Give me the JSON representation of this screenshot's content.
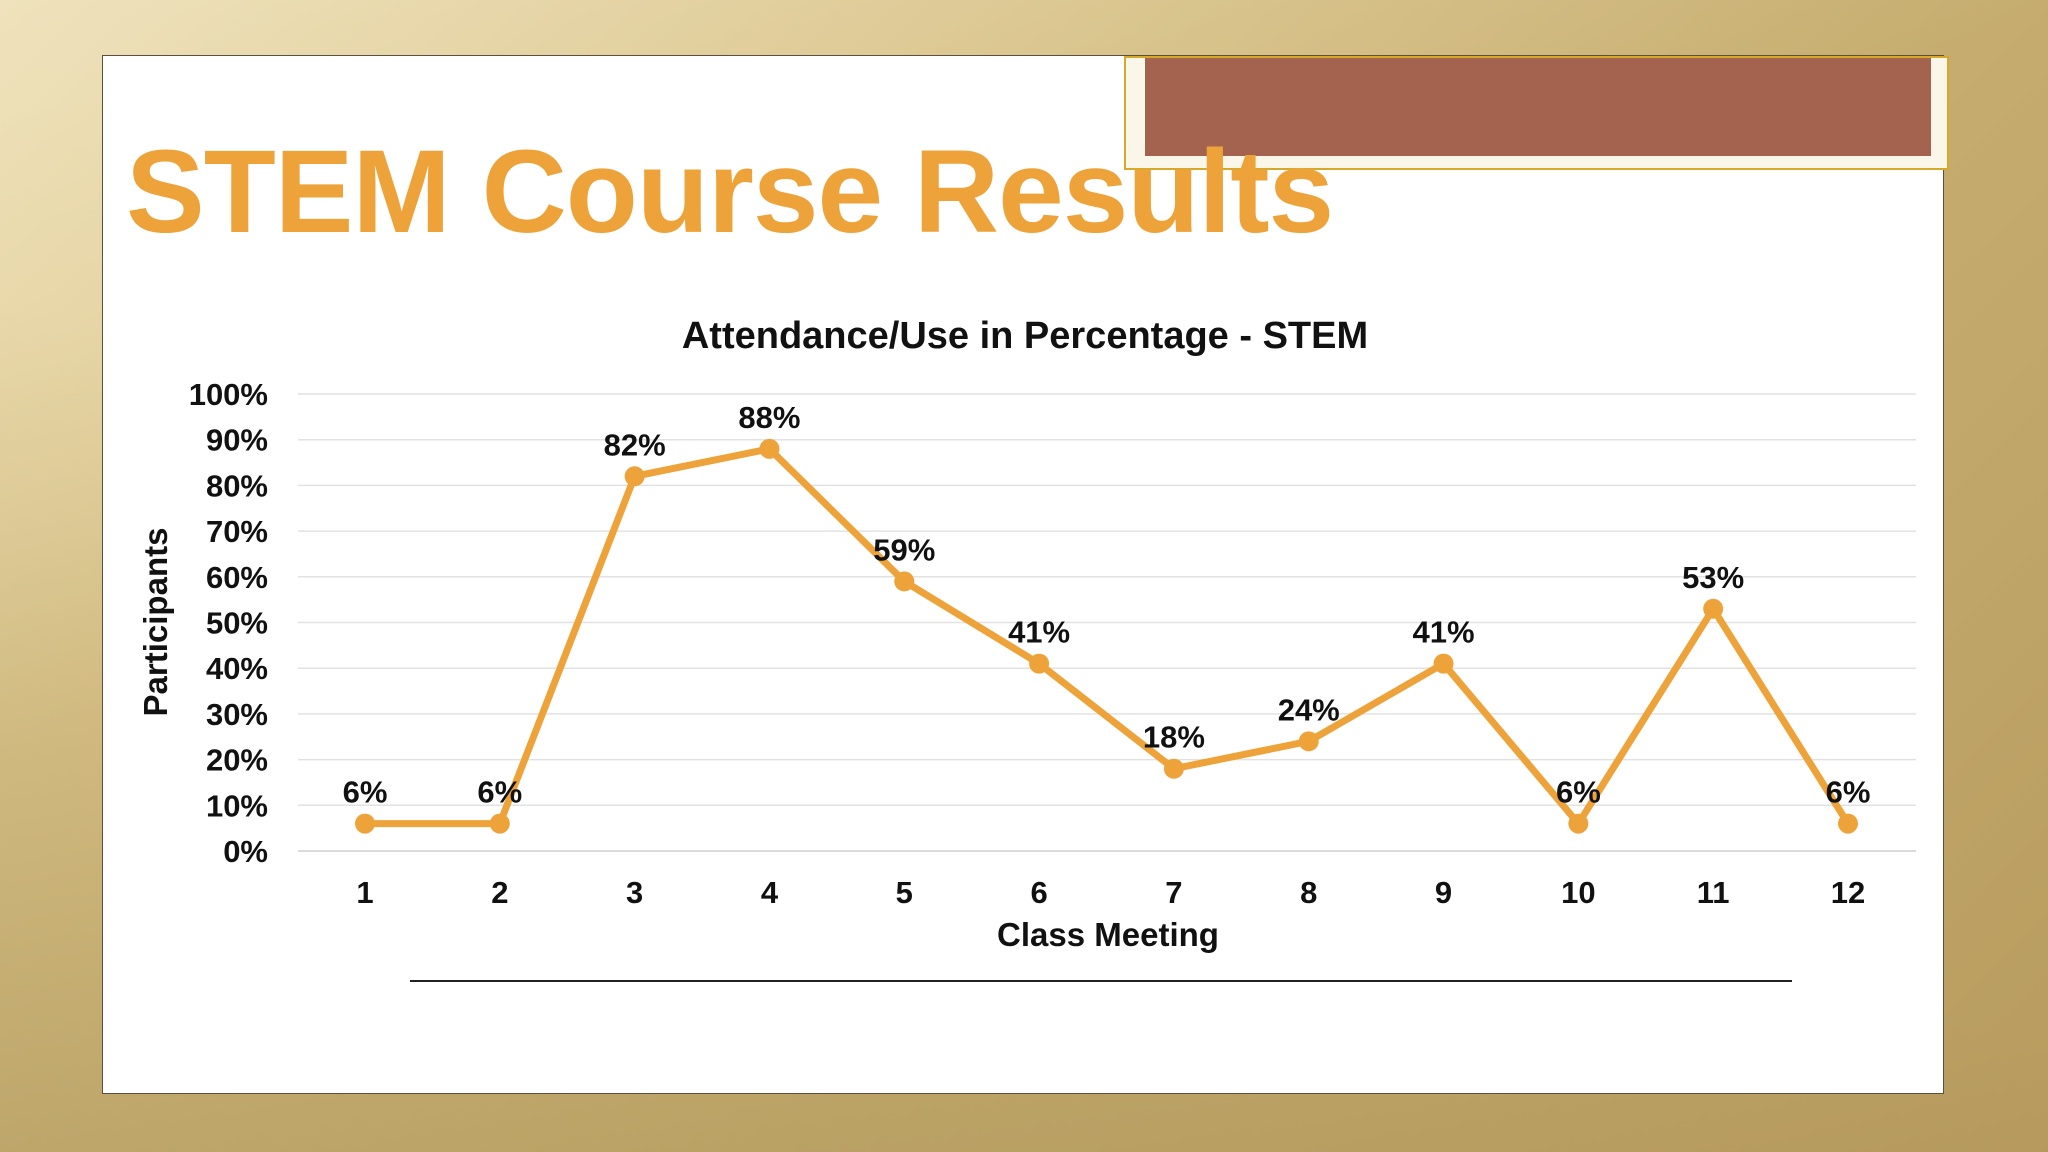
{
  "slide": {
    "title": "STEM Course Results"
  },
  "chart_data": {
    "type": "line",
    "title": "Attendance/Use in Percentage - STEM",
    "xlabel": "Class Meeting",
    "ylabel": "Participants",
    "categories": [
      "1",
      "2",
      "3",
      "4",
      "5",
      "6",
      "7",
      "8",
      "9",
      "10",
      "11",
      "12"
    ],
    "values": [
      6,
      6,
      82,
      88,
      59,
      41,
      18,
      24,
      41,
      6,
      53,
      6
    ],
    "data_labels": [
      "6%",
      "6%",
      "82%",
      "88%",
      "59%",
      "41%",
      "18%",
      "24%",
      "41%",
      "6%",
      "53%",
      "6%"
    ],
    "y_ticks": [
      "0%",
      "10%",
      "20%",
      "30%",
      "40%",
      "50%",
      "60%",
      "70%",
      "80%",
      "90%",
      "100%"
    ],
    "ylim": [
      0,
      100
    ],
    "grid": true,
    "legend": "none",
    "series_color": "#eea33a"
  }
}
